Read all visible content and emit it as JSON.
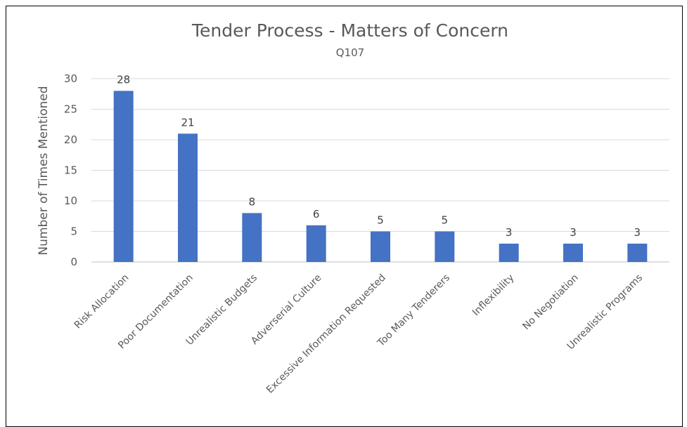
{
  "chart_data": {
    "type": "bar",
    "title": "Tender Process - Matters of Concern",
    "subtitle": "Q107",
    "ylabel": "Number of Times Mentioned",
    "xlabel": "",
    "ylim": [
      0,
      30
    ],
    "yticks": [
      0,
      5,
      10,
      15,
      20,
      25,
      30
    ],
    "grid": true,
    "color": "#4472C4",
    "categories": [
      "Risk Allocation",
      "Poor Documentation",
      "Unrealistic Budgets",
      "Adverserial Culture",
      "Excessive Information Requested",
      "Too Many Tenderers",
      "Inflexibility",
      "No Negotiation",
      "Unrealistic Programs"
    ],
    "values": [
      28,
      21,
      8,
      6,
      5,
      5,
      3,
      3,
      3
    ]
  }
}
